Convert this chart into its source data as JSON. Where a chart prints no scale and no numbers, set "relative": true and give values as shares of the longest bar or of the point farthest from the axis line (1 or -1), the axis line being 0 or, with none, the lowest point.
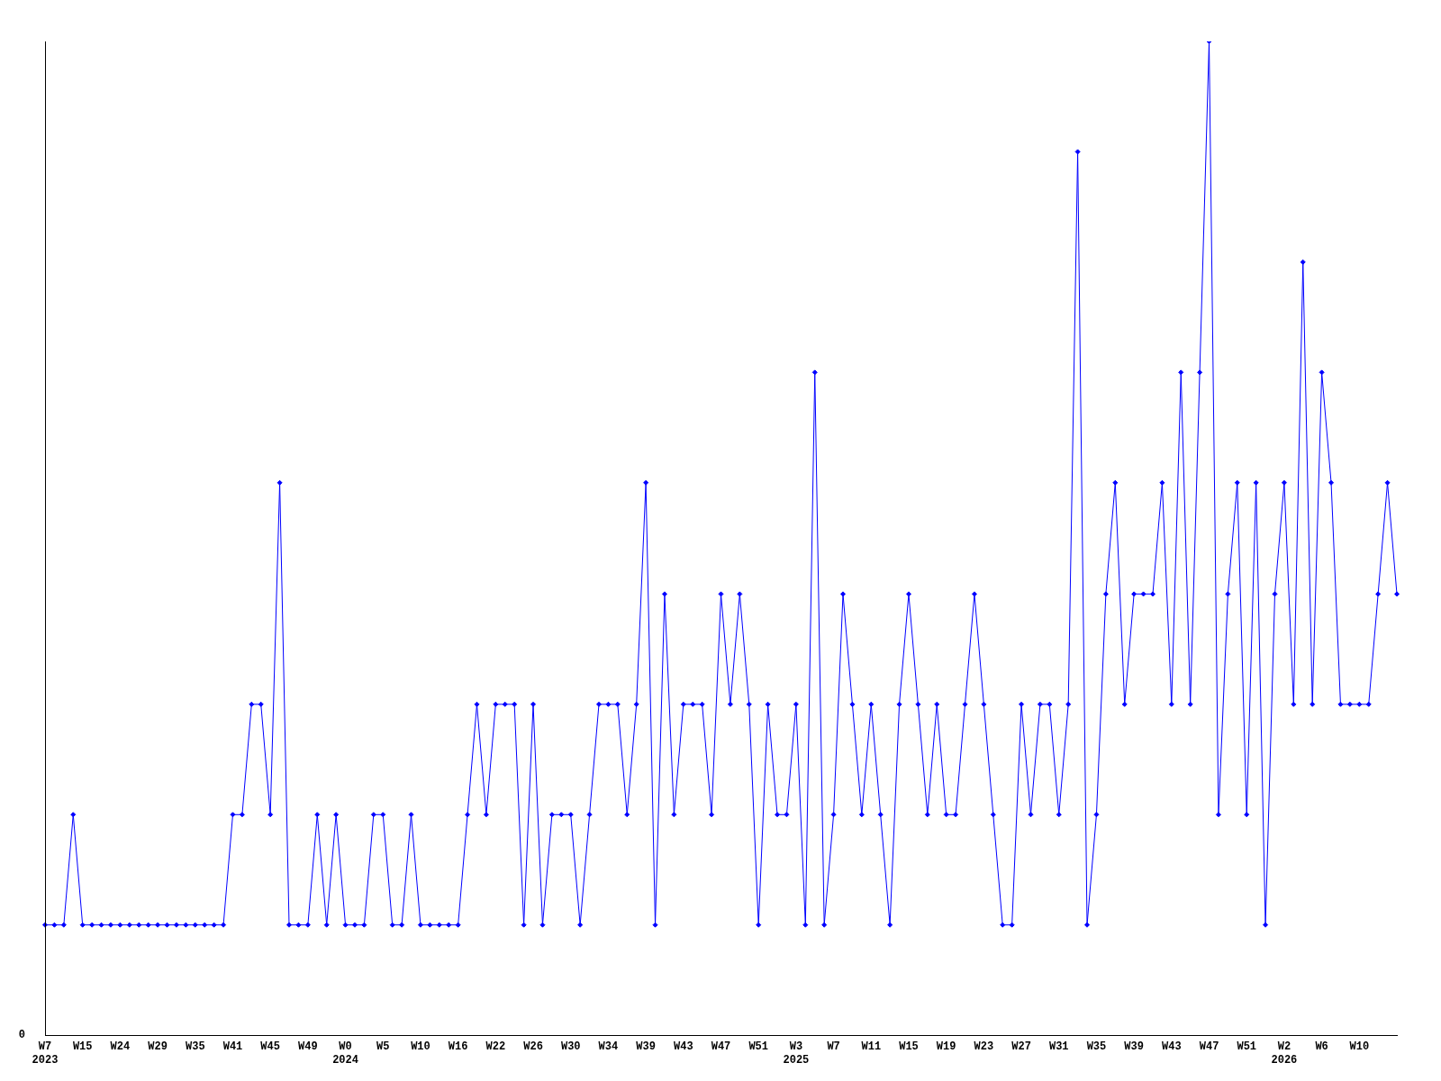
{
  "chart_data": {
    "type": "line",
    "relative": true,
    "legend": false,
    "grid": false,
    "marker": "diamond",
    "line_style": "solid",
    "categories": [
      "W7\n2023",
      null,
      null,
      null,
      "W15",
      null,
      null,
      null,
      "W24",
      null,
      null,
      null,
      "W29",
      null,
      null,
      null,
      "W35",
      null,
      null,
      null,
      "W41",
      null,
      null,
      null,
      "W45",
      null,
      null,
      null,
      "W49",
      null,
      null,
      null,
      "W0\n2024",
      null,
      null,
      null,
      "W5",
      null,
      null,
      null,
      "W10",
      null,
      null,
      null,
      "W16",
      null,
      null,
      null,
      "W22",
      null,
      null,
      null,
      "W26",
      null,
      null,
      null,
      "W30",
      null,
      null,
      null,
      "W34",
      null,
      null,
      null,
      "W39",
      null,
      null,
      null,
      "W43",
      null,
      null,
      null,
      "W47",
      null,
      null,
      null,
      "W51",
      null,
      null,
      null,
      "W3\n2025",
      null,
      null,
      null,
      "W7",
      null,
      null,
      null,
      "W11",
      null,
      null,
      null,
      "W15",
      null,
      null,
      null,
      "W19",
      null,
      null,
      null,
      "W23",
      null,
      null,
      null,
      "W27",
      null,
      null,
      null,
      "W31",
      null,
      null,
      null,
      "W35",
      null,
      null,
      null,
      "W39",
      null,
      null,
      null,
      "W43",
      null,
      null,
      null,
      "W47",
      null,
      null,
      null,
      "W51",
      null,
      null,
      null,
      "W2\n2026",
      null,
      null,
      null,
      "W6",
      null,
      null,
      null,
      "W10",
      null,
      null,
      null,
      null
    ],
    "series": [
      {
        "color": "#0000ff",
        "values": [
          0.111,
          0.111,
          0.111,
          0.222,
          0.111,
          0.111,
          0.111,
          0.111,
          0.111,
          0.111,
          0.111,
          0.111,
          0.111,
          0.111,
          0.111,
          0.111,
          0.111,
          0.111,
          0.111,
          0.111,
          0.222,
          0.222,
          0.333,
          0.333,
          0.222,
          0.556,
          0.111,
          0.111,
          0.111,
          0.222,
          0.111,
          0.222,
          0.111,
          0.111,
          0.111,
          0.222,
          0.222,
          0.111,
          0.111,
          0.222,
          0.111,
          0.111,
          0.111,
          0.111,
          0.111,
          0.222,
          0.333,
          0.222,
          0.333,
          0.333,
          0.333,
          0.111,
          0.333,
          0.111,
          0.222,
          0.222,
          0.222,
          0.111,
          0.222,
          0.333,
          0.333,
          0.333,
          0.222,
          0.333,
          0.556,
          0.111,
          0.444,
          0.222,
          0.333,
          0.333,
          0.333,
          0.222,
          0.444,
          0.333,
          0.444,
          0.333,
          0.111,
          0.333,
          0.222,
          0.222,
          0.333,
          0.111,
          0.667,
          0.111,
          0.222,
          0.444,
          0.333,
          0.222,
          0.333,
          0.222,
          0.111,
          0.333,
          0.444,
          0.333,
          0.222,
          0.333,
          0.222,
          0.222,
          0.333,
          0.444,
          0.333,
          0.222,
          0.111,
          0.111,
          0.333,
          0.222,
          0.333,
          0.333,
          0.222,
          0.333,
          0.889,
          0.111,
          0.222,
          0.444,
          0.556,
          0.333,
          0.444,
          0.444,
          0.444,
          0.556,
          0.333,
          0.667,
          0.333,
          0.667,
          1,
          0.222,
          0.444,
          0.556,
          0.222,
          0.556,
          0.111,
          0.444,
          0.556,
          0.333,
          0.778,
          0.333,
          0.667,
          0.556,
          0.333,
          0.333,
          0.333,
          0.333,
          0.444,
          0.556,
          0.444
        ]
      }
    ],
    "annotations": [
      "0"
    ]
  }
}
